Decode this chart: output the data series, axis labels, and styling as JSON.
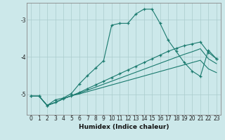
{
  "xlabel": "Humidex (Indice chaleur)",
  "bg_color": "#cce8ea",
  "grid_color": "#aacccc",
  "line_color": "#1a7a6e",
  "xlim_min": -0.5,
  "xlim_max": 23.5,
  "ylim_min": -5.55,
  "ylim_max": -2.55,
  "yticks": [
    -5,
    -4,
    -3
  ],
  "xticks": [
    0,
    1,
    2,
    3,
    4,
    5,
    6,
    7,
    8,
    9,
    10,
    11,
    12,
    13,
    14,
    15,
    16,
    17,
    18,
    19,
    20,
    21,
    22,
    23
  ],
  "main_y": [
    -5.05,
    -5.05,
    -5.3,
    -5.15,
    -5.1,
    -4.98,
    -4.72,
    -4.5,
    -4.3,
    -4.1,
    -3.15,
    -3.1,
    -3.1,
    -2.85,
    -2.72,
    -2.72,
    -3.1,
    -3.55,
    -3.85,
    -4.15,
    -4.38,
    -4.52,
    -3.82,
    -4.05
  ],
  "flat1_y": [
    -5.05,
    -5.05,
    -5.3,
    -5.22,
    -5.12,
    -5.04,
    -4.95,
    -4.85,
    -4.75,
    -4.65,
    -4.55,
    -4.45,
    -4.35,
    -4.25,
    -4.15,
    -4.05,
    -3.95,
    -3.85,
    -3.77,
    -3.7,
    -3.65,
    -3.6,
    -3.88,
    -4.05
  ],
  "flat2_y": [
    -5.05,
    -5.05,
    -5.3,
    -5.22,
    -5.12,
    -5.04,
    -4.97,
    -4.89,
    -4.81,
    -4.73,
    -4.65,
    -4.57,
    -4.49,
    -4.41,
    -4.33,
    -4.25,
    -4.17,
    -4.09,
    -4.01,
    -3.93,
    -3.86,
    -3.78,
    -4.05,
    -4.18
  ],
  "flat3_y": [
    -5.05,
    -5.05,
    -5.3,
    -5.22,
    -5.12,
    -5.04,
    -4.99,
    -4.93,
    -4.87,
    -4.81,
    -4.75,
    -4.69,
    -4.63,
    -4.57,
    -4.51,
    -4.45,
    -4.39,
    -4.33,
    -4.27,
    -4.21,
    -4.15,
    -4.09,
    -4.32,
    -4.42
  ]
}
